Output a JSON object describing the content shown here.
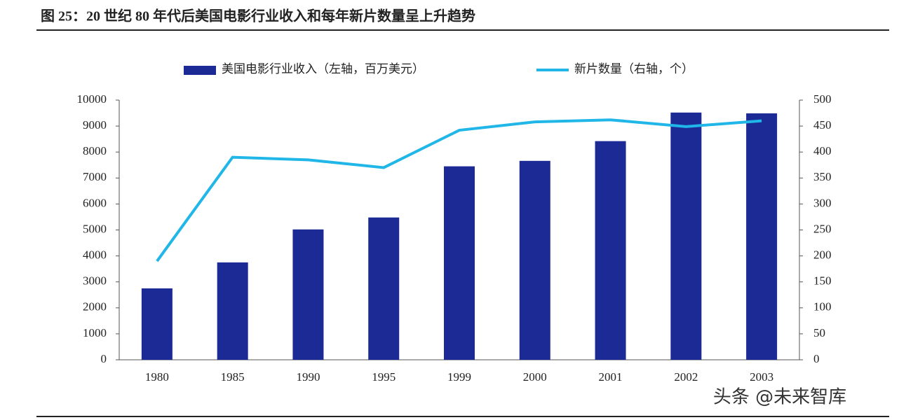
{
  "chart_data": {
    "type": "bar_line",
    "title": "图 25：20 世纪 80 年代后美国电影行业收入和每年新片数量呈上升趋势",
    "watermark": "头条 @未来智库",
    "categories": [
      "1980",
      "1985",
      "1990",
      "1995",
      "1999",
      "2000",
      "2001",
      "2002",
      "2003"
    ],
    "series": [
      {
        "name": "美国电影行业收入（左轴，百万美元）",
        "type": "bar",
        "color": "#1b2a94",
        "values": [
          2750,
          3750,
          5020,
          5480,
          7450,
          7660,
          8420,
          9520,
          9490
        ]
      },
      {
        "name": "新片数量（右轴，个）",
        "type": "line",
        "axis": "y2",
        "color": "#20b6e8",
        "values": [
          190,
          390,
          385,
          370,
          442,
          458,
          462,
          449,
          460
        ]
      }
    ],
    "ylim": [
      0,
      10000
    ],
    "yticks": [
      0,
      1000,
      2000,
      3000,
      4000,
      5000,
      6000,
      7000,
      8000,
      9000,
      10000
    ],
    "y2lim": [
      0,
      500
    ],
    "y2ticks": [
      0,
      50,
      100,
      150,
      200,
      250,
      300,
      350,
      400,
      450,
      500
    ],
    "legend": "top"
  }
}
